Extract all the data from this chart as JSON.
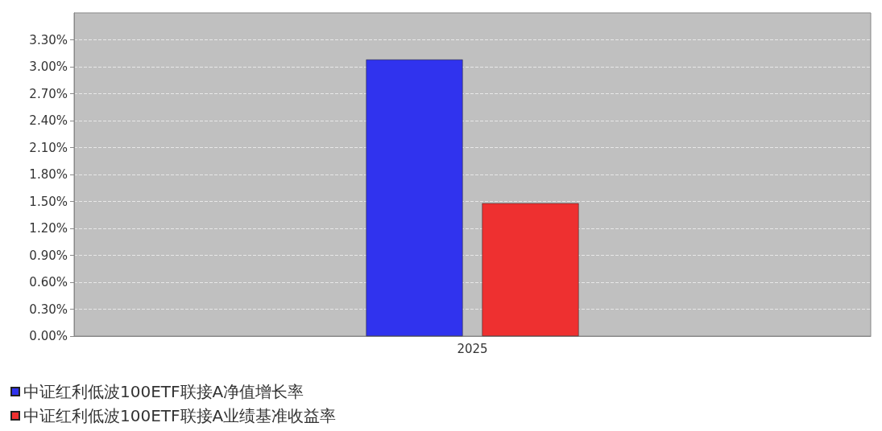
{
  "chart_data": {
    "type": "bar",
    "categories": [
      "2025"
    ],
    "series": [
      {
        "name": "中证红利低波100ETF联接A净值增长率",
        "color": "#3033ee",
        "values": [
          3.08
        ]
      },
      {
        "name": "中证红利低波100ETF联接A业绩基准收益率",
        "color": "#ee3030",
        "values": [
          1.48
        ]
      }
    ],
    "ylim": [
      0,
      3.6
    ],
    "yticks": [
      {
        "value": 0,
        "label": "0.00%"
      },
      {
        "value": 0.3,
        "label": "0.30%"
      },
      {
        "value": 0.6,
        "label": "0.60%"
      },
      {
        "value": 0.9,
        "label": "0.90%"
      },
      {
        "value": 1.2,
        "label": "1.20%"
      },
      {
        "value": 1.5,
        "label": "1.50%"
      },
      {
        "value": 1.8,
        "label": "1.80%"
      },
      {
        "value": 2.1,
        "label": "2.10%"
      },
      {
        "value": 2.4,
        "label": "2.40%"
      },
      {
        "value": 2.7,
        "label": "2.70%"
      },
      {
        "value": 3.0,
        "label": "3.00%"
      },
      {
        "value": 3.3,
        "label": "3.30%"
      }
    ],
    "grid": "y",
    "legend": "bottom left"
  }
}
